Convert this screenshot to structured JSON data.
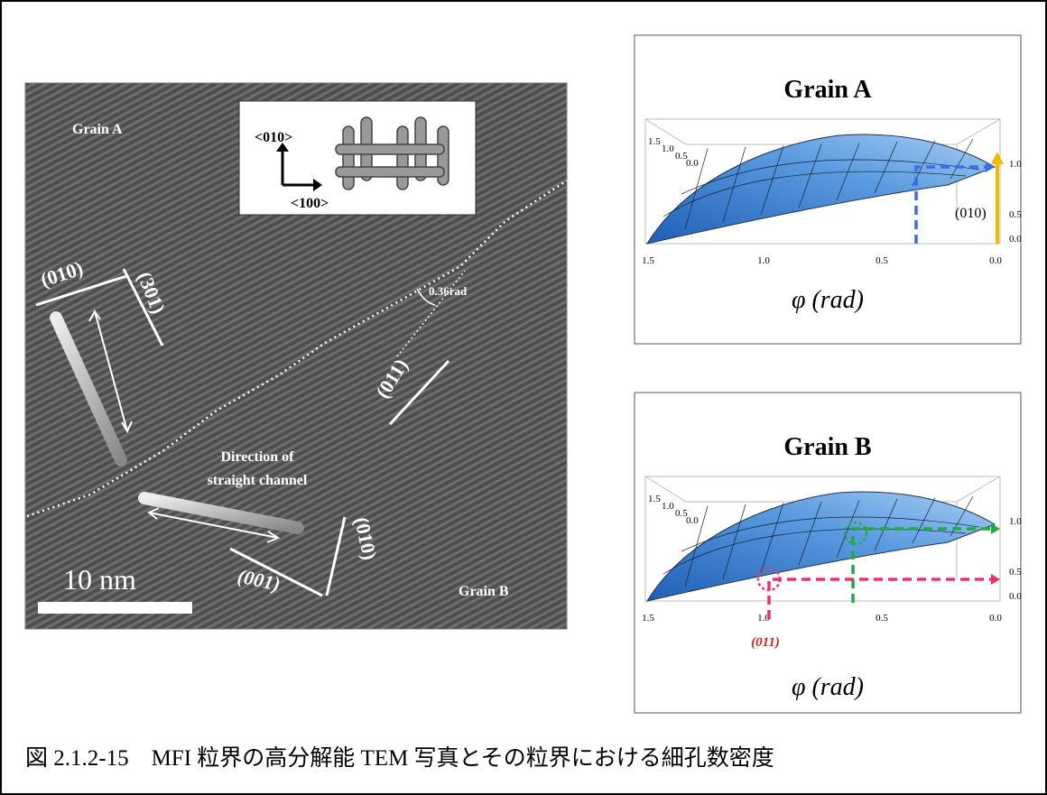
{
  "tem": {
    "grain_a": "Grain A",
    "axis_v": "<010>",
    "axis_h": "<100>",
    "plane_010_a": "(010)",
    "plane_301": "(301)",
    "angle": "0.36rad",
    "plane_011": "(011)",
    "direction_1": "Direction of",
    "direction_2": "straight channel",
    "plane_010_b": "(010)",
    "plane_001": "(001)",
    "scale": "10 nm",
    "grain_b": "Grain B"
  },
  "plots": [
    {
      "title": "Grain A",
      "bottom_ticks": [
        "1.5",
        "1.0",
        "0.5",
        "0.0"
      ],
      "right_ticks": [
        "1.0",
        "0.5",
        "0.0"
      ],
      "corner_ticks": [
        "1.5",
        "1.0",
        "0.5",
        "0.0"
      ],
      "annotation": "(010)",
      "axis_label": "φ (rad)"
    },
    {
      "title": "Grain B",
      "bottom_ticks": [
        "1.5",
        "1.0",
        "0.5",
        "0.0"
      ],
      "right_ticks": [
        "1.0",
        "0.5",
        "0.0"
      ],
      "corner_ticks": [
        "1.5",
        "1.0",
        "0.5",
        "0.0"
      ],
      "annotation": "(011)",
      "axis_label": "φ (rad)"
    }
  ],
  "caption": "図 2.1.2-15　MFI 粒界の高分解能 TEM 写真とその粒界における細孔数密度"
}
